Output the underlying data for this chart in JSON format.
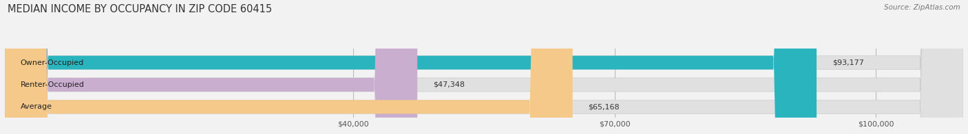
{
  "title": "MEDIAN INCOME BY OCCUPANCY IN ZIP CODE 60415",
  "source": "Source: ZipAtlas.com",
  "categories": [
    "Owner-Occupied",
    "Renter-Occupied",
    "Average"
  ],
  "values": [
    93177,
    47348,
    65168
  ],
  "value_labels": [
    "$93,177",
    "$47,348",
    "$65,168"
  ],
  "bar_colors": [
    "#2ab5be",
    "#c9aed0",
    "#f5c98a"
  ],
  "background_color": "#f2f2f2",
  "bar_bg_color": "#e0e0e0",
  "max_val": 110000,
  "xticks": [
    40000,
    70000,
    100000
  ],
  "xtick_labels": [
    "$40,000",
    "$70,000",
    "$100,000"
  ],
  "title_fontsize": 10.5,
  "label_fontsize": 8,
  "value_fontsize": 8,
  "source_fontsize": 7.5
}
